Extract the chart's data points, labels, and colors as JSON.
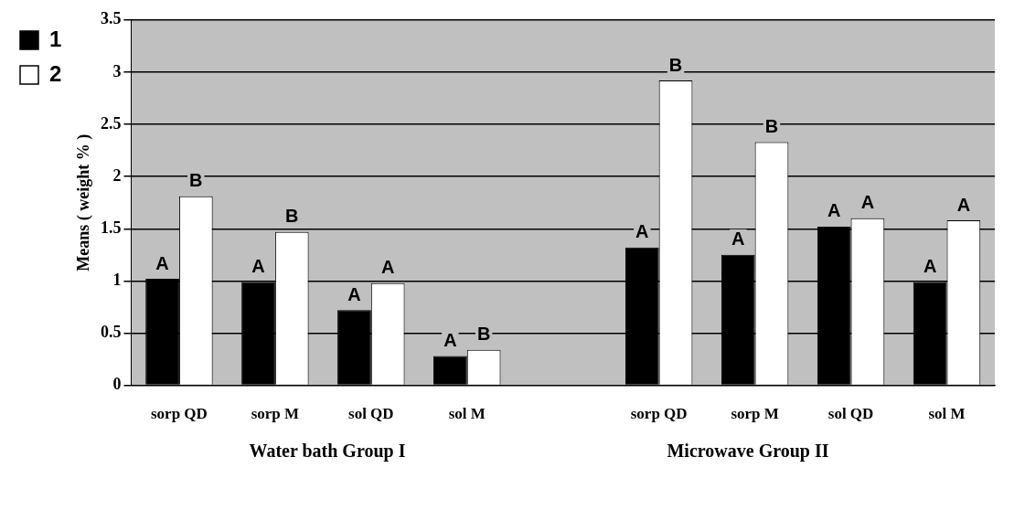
{
  "chart_data": {
    "type": "bar",
    "ylabel": "Means ( weight % )",
    "categories": [
      "sorp QD",
      "sorp M",
      "sol QD",
      "sol M",
      null,
      "sorp QD",
      "sorp M",
      "sol QD",
      "sol M"
    ],
    "series": [
      {
        "name": "1",
        "color": "#000000",
        "values": [
          1.02,
          0.99,
          0.72,
          0.28,
          null,
          1.32,
          1.25,
          1.52,
          0.99
        ],
        "value_labels": [
          "A",
          "A",
          "A",
          "A",
          null,
          "A",
          "A",
          "A",
          "A"
        ]
      },
      {
        "name": "2",
        "color": "#ffffff",
        "values": [
          1.81,
          1.47,
          0.98,
          0.34,
          null,
          2.92,
          2.33,
          1.6,
          1.58
        ],
        "value_labels": [
          "B",
          "B",
          "A",
          "B",
          null,
          "B",
          "B",
          "A",
          "A"
        ]
      }
    ],
    "ylim": [
      0,
      3.5
    ],
    "yticks": [
      0,
      0.5,
      1,
      1.5,
      2,
      2.5,
      3,
      3.5
    ],
    "grid": "y",
    "legend": "top left",
    "annotations": [
      "Water bath Group I",
      "Microwave Group II"
    ]
  }
}
